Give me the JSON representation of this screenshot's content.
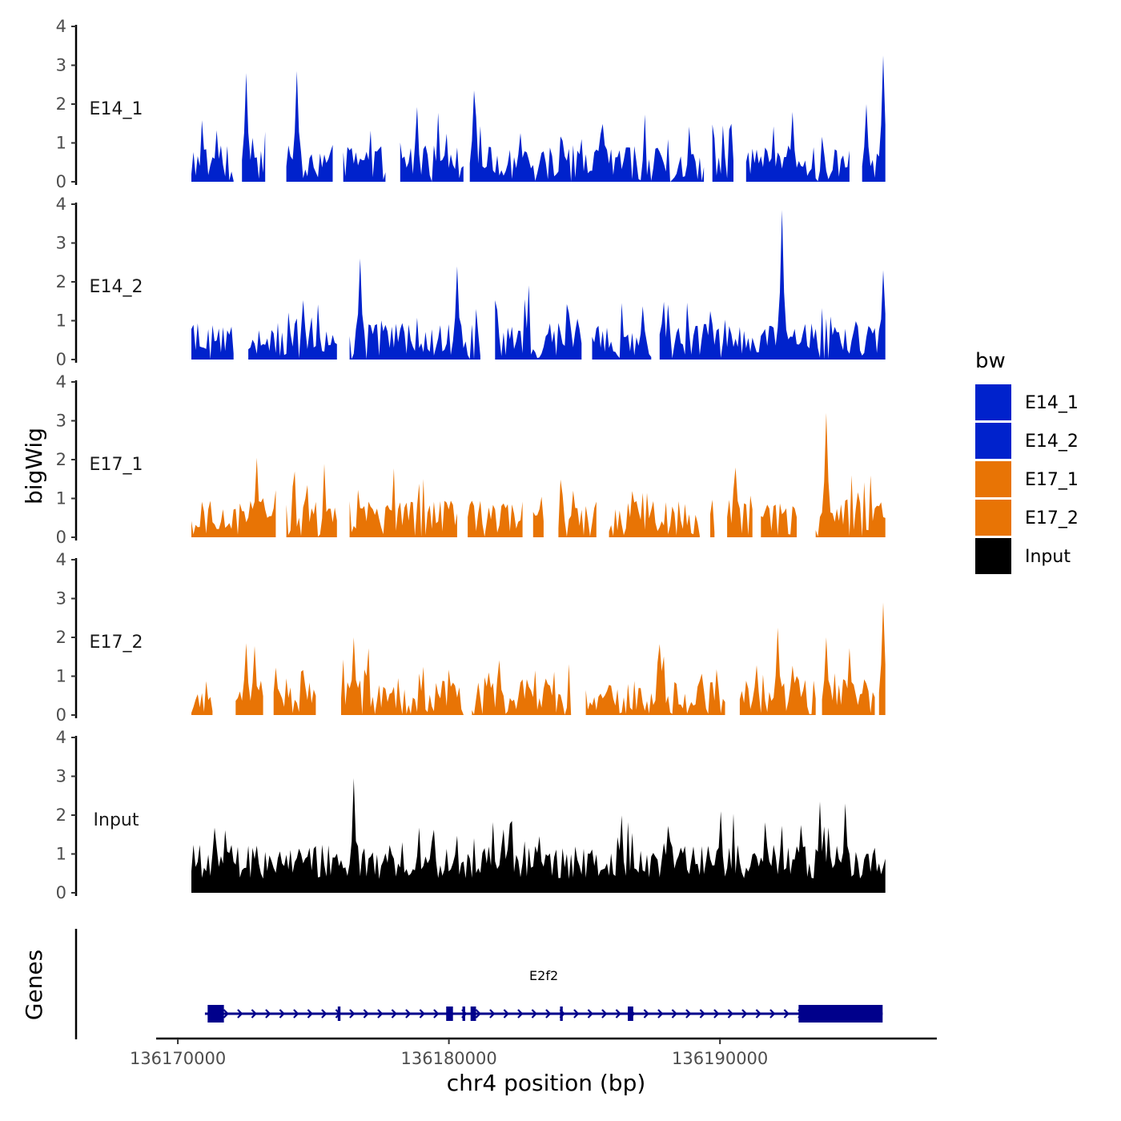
{
  "chart_data": {
    "type": "area",
    "ylabel": "bigWig",
    "xlabel": "chr4 position (bp)",
    "ylim": [
      0,
      4
    ],
    "yticks": [
      0,
      1,
      2,
      3,
      4
    ],
    "xlim": [
      136169200,
      136198000
    ],
    "xticks": [
      136170000,
      136180000,
      136190000
    ],
    "xtick_labels": [
      "136170000",
      "136180000",
      "136190000"
    ],
    "legend": {
      "title": "bw",
      "position": "right",
      "entries": [
        {
          "label": "E14_1",
          "color": "#0022CC"
        },
        {
          "label": "E14_2",
          "color": "#0022CC"
        },
        {
          "label": "E17_1",
          "color": "#E87405"
        },
        {
          "label": "E17_2",
          "color": "#E87405"
        },
        {
          "label": "Input",
          "color": "#000000"
        }
      ]
    },
    "series": [
      {
        "name": "E14_1",
        "color": "#0022CC",
        "peaks": [
          [
            136172500,
            2.8
          ],
          [
            136174400,
            2.85
          ],
          [
            136180900,
            2.35
          ],
          [
            136192700,
            1.8
          ],
          [
            136195400,
            2.0
          ],
          [
            136196000,
            3.25
          ]
        ]
      },
      {
        "name": "E14_2",
        "color": "#0022CC",
        "peaks": [
          [
            136176700,
            2.6
          ],
          [
            136180300,
            2.4
          ],
          [
            136192300,
            3.85
          ],
          [
            136196000,
            2.3
          ]
        ]
      },
      {
        "name": "E17_1",
        "color": "#E87405",
        "peaks": [
          [
            136172900,
            2.05
          ],
          [
            136190600,
            1.8
          ],
          [
            136193900,
            3.2
          ]
        ]
      },
      {
        "name": "E17_2",
        "color": "#E87405",
        "peaks": [
          [
            136172500,
            1.85
          ],
          [
            136176500,
            2.0
          ],
          [
            136192100,
            2.25
          ],
          [
            136193900,
            2.0
          ],
          [
            136196000,
            2.9
          ]
        ]
      },
      {
        "name": "Input",
        "color": "#000000",
        "peaks": [
          [
            136176500,
            2.95
          ],
          [
            136190000,
            2.1
          ],
          [
            136193700,
            2.35
          ],
          [
            136194600,
            2.3
          ]
        ]
      }
    ],
    "genes_track": {
      "label": "Genes",
      "gene": {
        "name": "E2f2",
        "start": 136171000,
        "end": 136196000,
        "color": "#00008B"
      }
    }
  }
}
